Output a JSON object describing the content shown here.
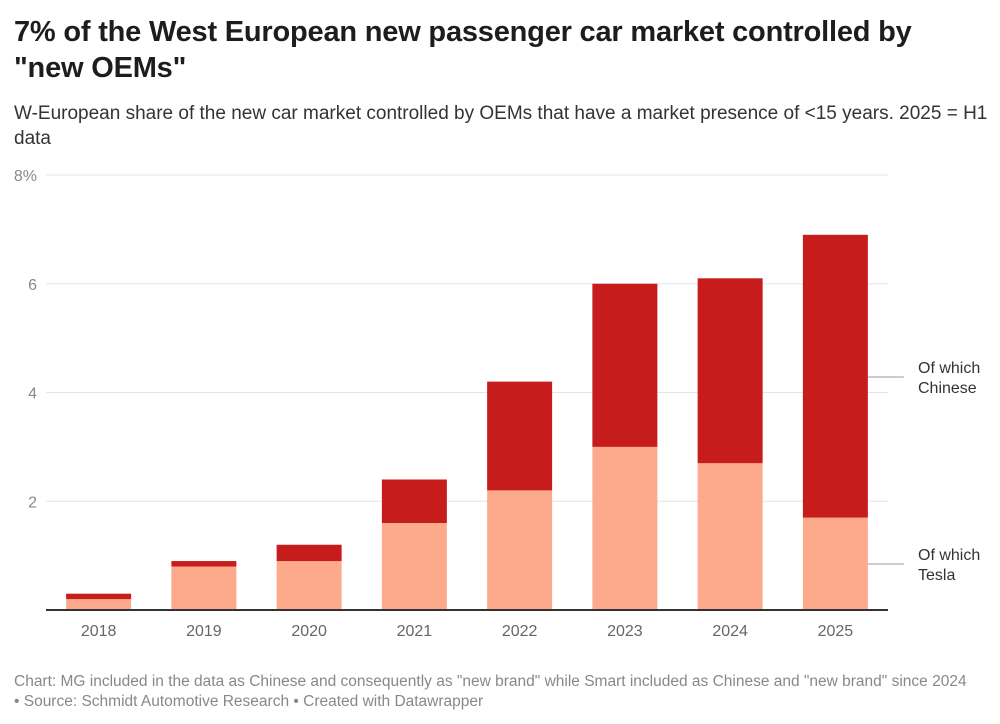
{
  "header": {
    "title": "7% of the West European new passenger car market controlled by \"new OEMs\"",
    "subtitle": "W-European share of the new car market controlled by OEMs that have a market presence of <15 years. 2025 = H1 data"
  },
  "footer": {
    "text": "Chart: MG included in the data as Chinese and consequently as \"new brand\" while Smart included as Chinese and \"new brand\" since 2024 • Source: Schmidt Automotive Research • Created with Datawrapper"
  },
  "colors": {
    "tesla": "#fca98c",
    "chinese": "#c71c1c",
    "grid": "#e5e5e5",
    "axis": "#333333"
  },
  "chart_data": {
    "type": "bar",
    "stacked": true,
    "title": "7% of the West European new passenger car market controlled by \"new OEMs\"",
    "subtitle": "W-European share of the new car market controlled by OEMs that have a market presence of <15 years. 2025 = H1 data",
    "xlabel": "",
    "ylabel": "",
    "ylim": [
      0,
      8
    ],
    "yticks": [
      {
        "value": 2,
        "label": "2"
      },
      {
        "value": 4,
        "label": "4"
      },
      {
        "value": 6,
        "label": "6"
      },
      {
        "value": 8,
        "label": "8%"
      }
    ],
    "grid": true,
    "categories": [
      "2018",
      "2019",
      "2020",
      "2021",
      "2022",
      "2023",
      "2024",
      "2025"
    ],
    "series": [
      {
        "name": "Of which Tesla",
        "legend_lines": [
          "Of which",
          "Tesla"
        ],
        "color": "#fca98c",
        "values": [
          0.2,
          0.8,
          0.9,
          1.6,
          2.2,
          3.0,
          2.7,
          1.7
        ]
      },
      {
        "name": "Of which Chinese",
        "legend_lines": [
          "Of which",
          "Chinese"
        ],
        "color": "#c71c1c",
        "values": [
          0.1,
          0.1,
          0.3,
          0.8,
          2.0,
          3.0,
          3.4,
          5.2
        ]
      }
    ],
    "legend": "right, inline labels"
  }
}
